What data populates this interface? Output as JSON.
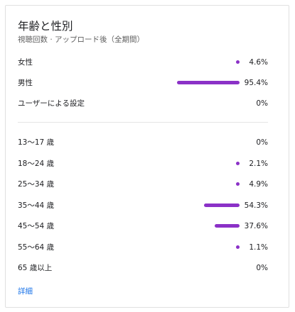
{
  "card": {
    "title": "年齢と性別",
    "subtitle": "視聴回数 · アップロード後（全期間）",
    "details_link": "詳細"
  },
  "accent_color": "#8b31c7",
  "gender": [
    {
      "label": "女性",
      "value": "4.6%",
      "percent": 4.6
    },
    {
      "label": "男性",
      "value": "95.4%",
      "percent": 95.4
    },
    {
      "label": "ユーザーによる設定",
      "value": "0%",
      "percent": 0
    }
  ],
  "age": [
    {
      "label": "13～17 歳",
      "value": "0%",
      "percent": 0
    },
    {
      "label": "18～24 歳",
      "value": "2.1%",
      "percent": 2.1
    },
    {
      "label": "25～34 歳",
      "value": "4.9%",
      "percent": 4.9
    },
    {
      "label": "35～44 歳",
      "value": "54.3%",
      "percent": 54.3
    },
    {
      "label": "45～54 歳",
      "value": "37.6%",
      "percent": 37.6
    },
    {
      "label": "55～64 歳",
      "value": "1.1%",
      "percent": 1.1
    },
    {
      "label": "65 歳以上",
      "value": "0%",
      "percent": 0
    }
  ]
}
